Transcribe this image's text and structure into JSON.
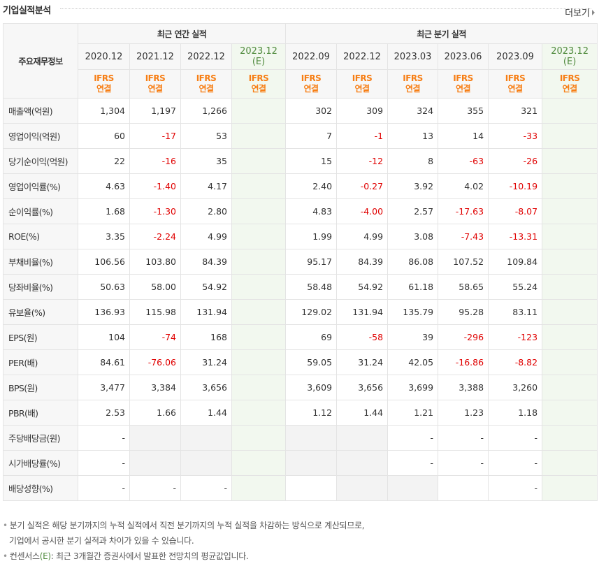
{
  "header": {
    "title": "기업실적분석",
    "more_label": "더보기"
  },
  "table": {
    "corner_label": "주요재무정보",
    "group_annual": "최근 연간 실적",
    "group_quarter": "최근 분기 실적",
    "periods": [
      "2020.12",
      "2021.12",
      "2022.12",
      "2023.12",
      "2022.09",
      "2022.12",
      "2023.03",
      "2023.06",
      "2023.09",
      "2023.12"
    ],
    "estimate_mark": "(E)",
    "ifrs_top": "IFRS",
    "ifrs_bottom": "연결",
    "rows": [
      {
        "label": "매출액(억원)",
        "values": [
          "1,304",
          "1,197",
          "1,266",
          "",
          "302",
          "309",
          "324",
          "355",
          "321",
          ""
        ]
      },
      {
        "label": "영업이익(억원)",
        "values": [
          "60",
          "-17",
          "53",
          "",
          "7",
          "-1",
          "13",
          "14",
          "-33",
          ""
        ]
      },
      {
        "label": "당기순이익(억원)",
        "values": [
          "22",
          "-16",
          "35",
          "",
          "15",
          "-12",
          "8",
          "-63",
          "-26",
          ""
        ]
      },
      {
        "label": "영업이익률(%)",
        "values": [
          "4.63",
          "-1.40",
          "4.17",
          "",
          "2.40",
          "-0.27",
          "3.92",
          "4.02",
          "-10.19",
          ""
        ]
      },
      {
        "label": "순이익률(%)",
        "values": [
          "1.68",
          "-1.30",
          "2.80",
          "",
          "4.83",
          "-4.00",
          "2.57",
          "-17.63",
          "-8.07",
          ""
        ]
      },
      {
        "label": "ROE(%)",
        "values": [
          "3.35",
          "-2.24",
          "4.99",
          "",
          "1.99",
          "4.99",
          "3.08",
          "-7.43",
          "-13.31",
          ""
        ]
      },
      {
        "label": "부채비율(%)",
        "values": [
          "106.56",
          "103.80",
          "84.39",
          "",
          "95.17",
          "84.39",
          "86.08",
          "107.52",
          "109.84",
          ""
        ]
      },
      {
        "label": "당좌비율(%)",
        "values": [
          "50.63",
          "58.00",
          "54.92",
          "",
          "58.48",
          "54.92",
          "61.18",
          "58.65",
          "55.24",
          ""
        ]
      },
      {
        "label": "유보율(%)",
        "values": [
          "136.93",
          "115.98",
          "131.94",
          "",
          "129.02",
          "131.94",
          "135.79",
          "95.28",
          "83.11",
          ""
        ]
      },
      {
        "label": "EPS(원)",
        "values": [
          "104",
          "-74",
          "168",
          "",
          "69",
          "-58",
          "39",
          "-296",
          "-123",
          ""
        ]
      },
      {
        "label": "PER(배)",
        "values": [
          "84.61",
          "-76.06",
          "31.24",
          "",
          "59.05",
          "31.24",
          "42.05",
          "-16.86",
          "-8.82",
          ""
        ]
      },
      {
        "label": "BPS(원)",
        "values": [
          "3,477",
          "3,384",
          "3,656",
          "",
          "3,609",
          "3,656",
          "3,699",
          "3,388",
          "3,260",
          ""
        ]
      },
      {
        "label": "PBR(배)",
        "values": [
          "2.53",
          "1.66",
          "1.44",
          "",
          "1.12",
          "1.44",
          "1.21",
          "1.23",
          "1.18",
          ""
        ]
      },
      {
        "label": "주당배당금(원)",
        "values": [
          "-",
          "",
          "",
          "",
          "",
          "",
          "-",
          "-",
          "-",
          ""
        ]
      },
      {
        "label": "시가배당률(%)",
        "values": [
          "-",
          "",
          "",
          "",
          "",
          "",
          "-",
          "-",
          "-",
          ""
        ]
      },
      {
        "label": "배당성향(%)",
        "values": [
          "-",
          "-",
          "-",
          "",
          "",
          "",
          "",
          "",
          "-",
          ""
        ]
      }
    ]
  },
  "notes": {
    "line1": "분기 실적은 해당 분기까지의 누적 실적에서 직전 분기까지의 누적 실적을 차감하는 방식으로 계산되므로,",
    "line2": "기업에서 공시한 분기 실적과 차이가 있을 수 있습니다.",
    "line3_prefix": "컨센서스",
    "line3_mark": "(E)",
    "line3_suffix": ": 최근 3개월간 증권사에서 발표한 전망치의 평균값입니다."
  },
  "colors": {
    "negative": "#e00000",
    "ifrs": "#f77e14",
    "estimate_bg": "#f2f8ef",
    "estimate_text": "#4f8a3d"
  }
}
